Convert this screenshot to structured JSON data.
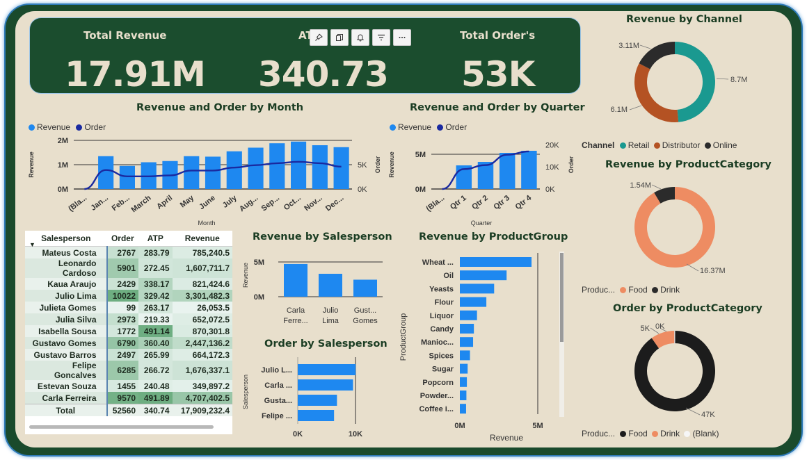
{
  "kpi": {
    "total_revenue_label": "Total Revenue",
    "total_revenue_value": "17.91M",
    "atp_label": "ATP",
    "atp_value": "340.73",
    "total_orders_label": "Total Order's",
    "total_orders_value": "53K"
  },
  "toolbar": {
    "icons": [
      "pin-icon",
      "copy-icon",
      "bell-icon",
      "filter-icon",
      "more-icon"
    ]
  },
  "colors": {
    "blue": "#1e88f0",
    "navy": "#1a2aa0",
    "teal": "#1a9990",
    "rust": "#b45223",
    "dark": "#2b2b2b",
    "salmon": "#ee8c62",
    "green": "#1b4d2e"
  },
  "month_chart": {
    "title": "Revenue and Order by Month",
    "legend": [
      "Revenue",
      "Order"
    ],
    "xlabel": "Month",
    "ylabel_left": "Revenue",
    "ylabel_right": "Order",
    "y_ticks_left": [
      "2M",
      "1M",
      "0M"
    ],
    "y_ticks_right": [
      "5K",
      "0K"
    ]
  },
  "quarter_chart": {
    "title": "Revenue and Order by Quarter",
    "legend": [
      "Revenue",
      "Order"
    ],
    "xlabel": "Quarter",
    "ylabel_left": "Revenue",
    "ylabel_right": "Order",
    "y_ticks_left": [
      "5M",
      "0M"
    ],
    "y_ticks_right": [
      "20K",
      "10K",
      "0K"
    ]
  },
  "channel_chart": {
    "title": "Revenue by Channel",
    "legend_title": "Channel",
    "legend": [
      "Retail",
      "Distributor",
      "Online"
    ],
    "labels": [
      "8.7M",
      "6.1M",
      "3.11M"
    ]
  },
  "productcat_chart": {
    "title": "Revenue by ProductCategory",
    "legend_title": "Produc...",
    "legend": [
      "Food",
      "Drink"
    ],
    "labels": [
      "16.37M",
      "1.54M"
    ]
  },
  "order_cat_chart": {
    "title": "Order by ProductCategory",
    "legend_title": "Produc...",
    "legend": [
      "Food",
      "Drink",
      "(Blank)"
    ],
    "labels": [
      "47K",
      "5K",
      "0K"
    ]
  },
  "rev_sales_chart": {
    "title": "Revenue by Salesperson",
    "ylabel": "Revenue",
    "y_ticks": [
      "5M",
      "0M"
    ],
    "cats": [
      [
        "Carla",
        "Ferre..."
      ],
      [
        "Julio",
        "Lima"
      ],
      [
        "Gust...",
        "Gomes"
      ]
    ]
  },
  "ord_sales_chart": {
    "title": "Order by Salesperson",
    "ylabel": "Salesperson",
    "x_ticks": [
      "0K",
      "10K"
    ],
    "cats": [
      "Julio L...",
      "Carla ...",
      "Gusta...",
      "Felipe ..."
    ]
  },
  "group_chart": {
    "title": "Revenue by ProductGroup",
    "ylabel": "ProductGroup",
    "xlabel": "Revenue",
    "x_ticks": [
      "0M",
      "5M"
    ],
    "cats": [
      "Wheat ...",
      "Oil",
      "Yeasts",
      "Flour",
      "Liquor",
      "Candy",
      "Manioc...",
      "Spices",
      "Sugar",
      "Popcorn",
      "Powder...",
      "Coffee i..."
    ]
  },
  "table": {
    "headers": [
      "Salesperson",
      "Order",
      "ATP",
      "Revenue"
    ],
    "rows": [
      [
        "Mateus Costa",
        "2767",
        "283.79",
        "785,240.5"
      ],
      [
        "Leonardo Cardoso",
        "5901",
        "272.45",
        "1,607,711.7"
      ],
      [
        "Kaua Araujo",
        "2429",
        "338.17",
        "821,424.6"
      ],
      [
        "Julio Lima",
        "10022",
        "329.42",
        "3,301,482.3"
      ],
      [
        "Julieta Gomes",
        "99",
        "263.17",
        "26,053.5"
      ],
      [
        "Julia Silva",
        "2973",
        "219.33",
        "652,072.5"
      ],
      [
        "Isabella Sousa",
        "1772",
        "491.14",
        "870,301.8"
      ],
      [
        "Gustavo Gomes",
        "6790",
        "360.40",
        "2,447,136.2"
      ],
      [
        "Gustavo Barros",
        "2497",
        "265.99",
        "664,172.3"
      ],
      [
        "Felipe Goncalves",
        "6285",
        "266.72",
        "1,676,337.1"
      ],
      [
        "Estevan Souza",
        "1455",
        "240.48",
        "349,897.2"
      ],
      [
        "Carla Ferreira",
        "9570",
        "491.89",
        "4,707,402.5"
      ]
    ],
    "total": [
      "Total",
      "52560",
      "340.74",
      "17,909,232.4"
    ]
  },
  "chart_data": [
    {
      "type": "bar",
      "title": "Revenue and Order by Month",
      "xlabel": "Month",
      "ylabel": "Revenue",
      "categories": [
        "(Bla...",
        "Jan...",
        "Feb...",
        "March",
        "April",
        "May",
        "June",
        "July",
        "Aug...",
        "Sep...",
        "Oct...",
        "Nov...",
        "Dec..."
      ],
      "series": [
        {
          "name": "Revenue",
          "values": [
            0,
            1.35,
            0.95,
            1.1,
            1.15,
            1.35,
            1.33,
            1.55,
            1.7,
            1.88,
            1.95,
            1.8,
            1.72
          ]
        },
        {
          "name": "Order",
          "values": [
            0,
            3900,
            2600,
            2600,
            2800,
            3800,
            3800,
            4400,
            4900,
            5300,
            5600,
            5300,
            4600
          ]
        }
      ],
      "ylim": [
        0,
        2
      ],
      "y2lim": [
        0,
        10000
      ]
    },
    {
      "type": "bar",
      "title": "Revenue and Order by Quarter",
      "xlabel": "Quarter",
      "ylabel": "Revenue",
      "categories": [
        "(Bla...",
        "Qtr 1",
        "Qtr 2",
        "Qtr 3",
        "Qtr 4"
      ],
      "series": [
        {
          "name": "Revenue",
          "values": [
            0,
            3.4,
            3.9,
            5.2,
            5.5
          ]
        },
        {
          "name": "Order",
          "values": [
            0,
            9000,
            10800,
            15500,
            17000
          ]
        }
      ],
      "ylim": [
        0,
        7
      ],
      "y2lim": [
        0,
        22000
      ]
    },
    {
      "type": "pie",
      "title": "Revenue by Channel",
      "categories": [
        "Retail",
        "Distributor",
        "Online"
      ],
      "values": [
        8.7,
        6.1,
        3.11
      ]
    },
    {
      "type": "pie",
      "title": "Revenue by ProductCategory",
      "categories": [
        "Food",
        "Drink"
      ],
      "values": [
        16.37,
        1.54
      ]
    },
    {
      "type": "pie",
      "title": "Order by ProductCategory",
      "categories": [
        "Food",
        "Drink",
        "(Blank)"
      ],
      "values": [
        47,
        5,
        0.05
      ]
    },
    {
      "type": "bar",
      "title": "Revenue by Salesperson",
      "categories": [
        "Carla Ferre...",
        "Julio Lima",
        "Gust... Gomes"
      ],
      "values": [
        4.71,
        3.3,
        2.45
      ],
      "ylim": [
        0,
        5.5
      ]
    },
    {
      "type": "bar",
      "title": "Order by Salesperson",
      "categories": [
        "Julio L...",
        "Carla ...",
        "Gusta...",
        "Felipe ..."
      ],
      "values": [
        10022,
        9570,
        6790,
        6285
      ],
      "xlim": [
        0,
        10000
      ]
    },
    {
      "type": "bar",
      "title": "Revenue by ProductGroup",
      "xlabel": "Revenue",
      "ylabel": "ProductGroup",
      "categories": [
        "Wheat ...",
        "Oil",
        "Yeasts",
        "Flour",
        "Liquor",
        "Candy",
        "Manioc...",
        "Spices",
        "Sugar",
        "Popcorn",
        "Powder...",
        "Coffee i..."
      ],
      "values": [
        4.6,
        3.0,
        2.2,
        1.7,
        1.1,
        0.9,
        0.85,
        0.65,
        0.5,
        0.45,
        0.42,
        0.4
      ],
      "xlim": [
        0,
        5.5
      ]
    }
  ]
}
